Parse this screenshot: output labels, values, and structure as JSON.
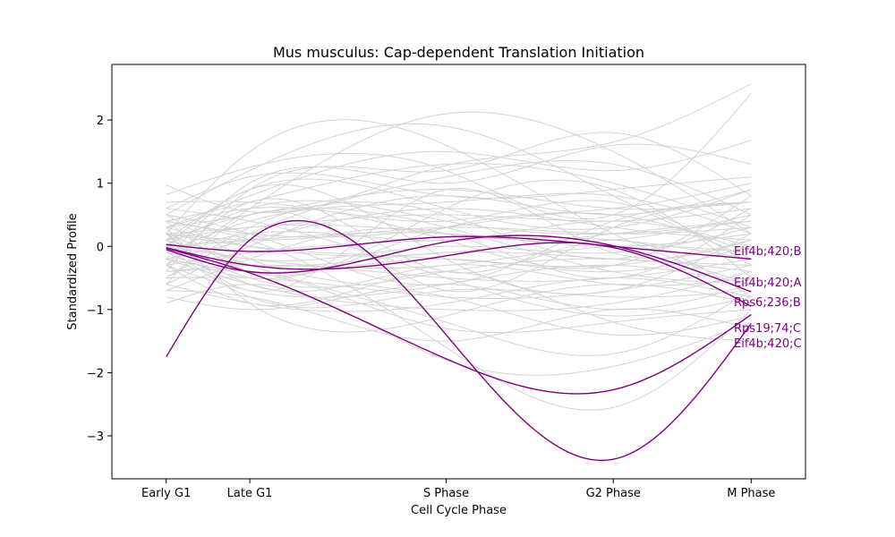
{
  "chart_data": {
    "type": "line",
    "title": "Mus musculus: Cap-dependent Translation Initiation",
    "xlabel": "Cell Cycle Phase",
    "ylabel": "Standardized Profile",
    "x_positions": [
      0,
      1,
      3.35,
      5.35,
      7.0
    ],
    "categories": [
      "Early G1",
      "Late G1",
      "S Phase",
      "G2 Phase",
      "M Phase"
    ],
    "xlim": [
      -0.65,
      7.65
    ],
    "ylim": [
      -3.68,
      2.88
    ],
    "yticks": [
      -3,
      -2,
      -1,
      0,
      1,
      2
    ],
    "ytick_labels": [
      "−3",
      "−2",
      "−1",
      "0",
      "1",
      "2"
    ],
    "grid": false,
    "background_color": "#d3d3d3",
    "highlight_color": "#800080",
    "background_series": [
      {
        "values": [
          0.97,
          0.55,
          1.28,
          1.65,
          2.57
        ]
      },
      {
        "values": [
          0.82,
          1.25,
          1.2,
          0.5,
          2.42
        ]
      },
      {
        "values": [
          -0.3,
          0.6,
          2.1,
          1.5,
          0.2
        ]
      },
      {
        "values": [
          0.5,
          1.2,
          1.9,
          0.8,
          -0.2
        ]
      },
      {
        "values": [
          0.2,
          1.5,
          1.6,
          0.2,
          -0.6
        ]
      },
      {
        "values": [
          -0.4,
          0.9,
          1.2,
          1.8,
          0.8
        ]
      },
      {
        "values": [
          0.3,
          0.8,
          1.5,
          1.2,
          1.68
        ]
      },
      {
        "values": [
          -0.2,
          1.0,
          1.0,
          1.6,
          1.3
        ]
      },
      {
        "values": [
          0.6,
          1.1,
          0.8,
          0.9,
          1.1
        ]
      },
      {
        "values": [
          0.4,
          0.7,
          1.3,
          1.0,
          0.3
        ]
      },
      {
        "values": [
          -0.5,
          0.2,
          1.1,
          1.3,
          0.5
        ]
      },
      {
        "values": [
          0.1,
          0.9,
          0.6,
          0.3,
          0.9
        ]
      },
      {
        "values": [
          0.3,
          0.5,
          0.9,
          0.6,
          0.7
        ]
      },
      {
        "values": [
          -0.1,
          0.4,
          0.7,
          0.8,
          0.2
        ]
      },
      {
        "values": [
          0.2,
          0.3,
          0.5,
          0.4,
          0.6
        ]
      },
      {
        "values": [
          0.0,
          0.6,
          0.4,
          0.2,
          0.4
        ]
      },
      {
        "values": [
          0.4,
          0.2,
          0.3,
          0.5,
          -0.1
        ]
      },
      {
        "values": [
          -0.2,
          0.1,
          0.6,
          0.3,
          0.1
        ]
      },
      {
        "values": [
          0.1,
          0.3,
          0.2,
          0.1,
          0.5
        ]
      },
      {
        "values": [
          0.2,
          0.1,
          0.3,
          0.2,
          0.3
        ]
      },
      {
        "values": [
          -0.1,
          0.2,
          0.1,
          0.4,
          0.0
        ]
      },
      {
        "values": [
          0.0,
          0.1,
          0.2,
          0.0,
          0.2
        ]
      },
      {
        "values": [
          0.3,
          0.0,
          -0.1,
          0.2,
          0.4
        ]
      },
      {
        "values": [
          -0.3,
          -0.1,
          0.1,
          0.1,
          -0.2
        ]
      },
      {
        "values": [
          0.1,
          -0.2,
          0.0,
          -0.1,
          0.3
        ]
      },
      {
        "values": [
          0.2,
          0.0,
          -0.2,
          -0.3,
          0.1
        ]
      },
      {
        "values": [
          -0.1,
          -0.3,
          -0.1,
          -0.2,
          -0.3
        ]
      },
      {
        "values": [
          0.0,
          -0.2,
          -0.3,
          0.0,
          -0.1
        ]
      },
      {
        "values": [
          -0.2,
          -0.4,
          -0.2,
          -0.4,
          0.0
        ]
      },
      {
        "values": [
          0.1,
          -0.5,
          -0.4,
          -0.2,
          -0.4
        ]
      },
      {
        "values": [
          -0.4,
          -0.3,
          -0.5,
          -0.5,
          -0.2
        ]
      },
      {
        "values": [
          0.2,
          -0.6,
          -0.3,
          -0.6,
          -0.5
        ]
      },
      {
        "values": [
          -0.3,
          -0.7,
          -0.6,
          -0.3,
          -0.6
        ]
      },
      {
        "values": [
          -0.5,
          -0.5,
          -0.8,
          -0.7,
          -0.3
        ]
      },
      {
        "values": [
          0.0,
          -0.8,
          -0.7,
          -0.8,
          -0.7
        ]
      },
      {
        "values": [
          -0.6,
          -0.9,
          -0.9,
          -0.5,
          -0.8
        ]
      },
      {
        "values": [
          -0.2,
          -0.6,
          -1.0,
          -0.9,
          -0.4
        ]
      },
      {
        "values": [
          0.3,
          -0.9,
          -1.1,
          -0.6,
          -0.9
        ]
      },
      {
        "values": [
          -0.8,
          -1.0,
          -0.6,
          -1.0,
          -0.6
        ]
      },
      {
        "values": [
          -0.4,
          -0.4,
          -1.3,
          -1.2,
          -1.0
        ]
      },
      {
        "values": [
          0.5,
          -0.2,
          -0.8,
          -1.4,
          -1.1
        ]
      },
      {
        "values": [
          -0.7,
          -0.8,
          -1.5,
          -1.0,
          -1.3
        ]
      },
      {
        "values": [
          0.2,
          -0.3,
          -1.2,
          -1.7,
          -0.7
        ]
      },
      {
        "values": [
          -0.9,
          -0.6,
          -1.8,
          -1.9,
          -1.2
        ]
      },
      {
        "values": [
          0.4,
          0.1,
          -1.6,
          -2.55,
          -1.0
        ]
      },
      {
        "values": [
          -0.3,
          -0.9,
          -0.4,
          -1.2,
          -1.5
        ]
      },
      {
        "values": [
          0.6,
          0.4,
          -0.5,
          -1.1,
          -0.8
        ]
      },
      {
        "values": [
          0.1,
          0.5,
          0.3,
          -0.4,
          -0.6
        ]
      },
      {
        "values": [
          -0.5,
          0.3,
          0.5,
          -0.2,
          0.6
        ]
      },
      {
        "values": [
          0.7,
          0.7,
          0.1,
          -0.3,
          0.8
        ]
      },
      {
        "values": [
          -0.6,
          0.0,
          0.8,
          0.5,
          0.9
        ]
      },
      {
        "values": [
          0.3,
          0.6,
          0.4,
          0.7,
          -0.3
        ]
      },
      {
        "values": [
          -0.1,
          -0.5,
          0.3,
          0.6,
          1.0
        ]
      },
      {
        "values": [
          0.5,
          0.2,
          -0.6,
          0.4,
          0.7
        ]
      },
      {
        "values": [
          -0.7,
          -0.2,
          0.2,
          -0.5,
          0.5
        ]
      },
      {
        "values": [
          0.0,
          0.9,
          -0.2,
          -0.7,
          0.2
        ]
      },
      {
        "values": [
          0.4,
          -0.4,
          0.6,
          0.9,
          -0.5
        ]
      },
      {
        "values": [
          -0.3,
          0.7,
          -0.4,
          0.1,
          -0.8
        ]
      },
      {
        "values": [
          0.2,
          -0.7,
          0.9,
          -0.1,
          0.1
        ]
      },
      {
        "values": [
          -0.6,
          0.5,
          -0.7,
          0.3,
          0.7
        ]
      }
    ],
    "series": [
      {
        "name": "Eif4b;420;B",
        "values": [
          0.03,
          -0.08,
          0.15,
          0.0,
          -0.2
        ]
      },
      {
        "name": "Eif4b;420;A",
        "values": [
          -0.05,
          -0.4,
          0.07,
          0.01,
          -0.72
        ]
      },
      {
        "name": "Rps6;236;B",
        "values": [
          -0.03,
          -0.42,
          -1.78,
          -2.27,
          -1.08
        ]
      },
      {
        "name": "Rps19;74;C",
        "values": [
          -1.75,
          0.1,
          -1.4,
          -3.37,
          -1.22
        ]
      },
      {
        "name": "Eif4b;420;C",
        "values": [
          -0.02,
          -0.3,
          -0.15,
          -0.02,
          -0.95
        ]
      }
    ]
  }
}
